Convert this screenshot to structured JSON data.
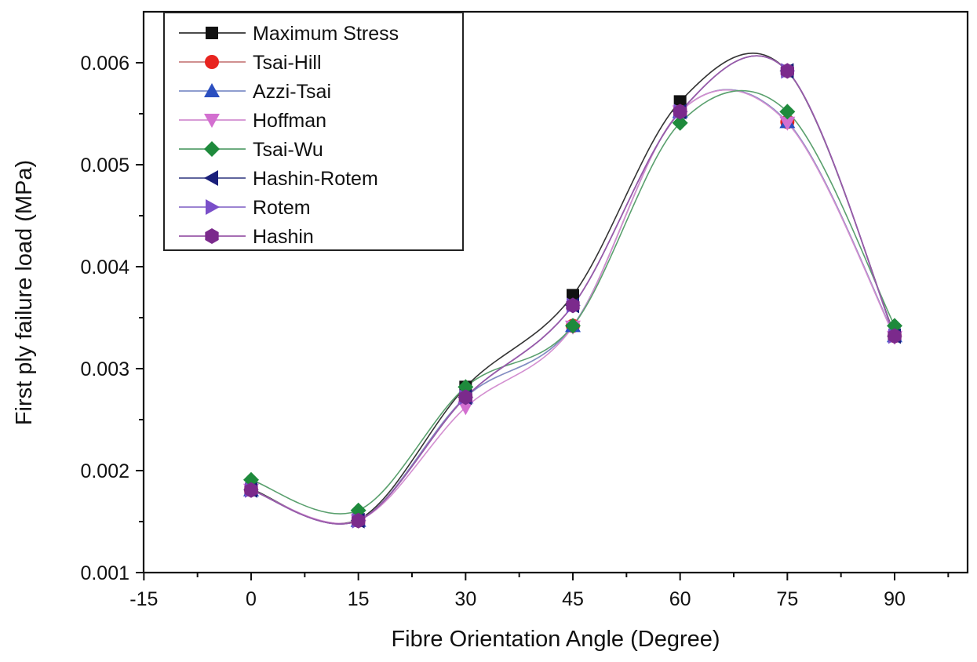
{
  "chart_data": {
    "type": "line",
    "title": "",
    "xlabel": "Fibre Orientation Angle (Degree)",
    "ylabel": "First ply failure load (MPa)",
    "xlim": [
      -15,
      97
    ],
    "ylim": [
      0.001,
      0.0065
    ],
    "xticks": [
      "-15",
      "0",
      "15",
      "30",
      "45",
      "60",
      "75",
      "90"
    ],
    "yticks": [
      "0.001",
      "0.002",
      "0.003",
      "0.004",
      "0.005",
      "0.006"
    ],
    "x": [
      0,
      15,
      30,
      45,
      60,
      75,
      90
    ],
    "legend_position": "top-left",
    "series": [
      {
        "name": "Maximum Stress",
        "marker": "square",
        "color": "#111111",
        "line_color": "#333333",
        "values": [
          0.00182,
          0.00152,
          0.00282,
          0.00372,
          0.00562,
          0.00592,
          0.00333
        ]
      },
      {
        "name": "Tsai-Hill",
        "marker": "circle",
        "color": "#e8241f",
        "line_color": "#c98080",
        "values": [
          0.00181,
          0.00151,
          0.00272,
          0.00342,
          0.00552,
          0.00542,
          0.00332
        ]
      },
      {
        "name": "Azzi-Tsai",
        "marker": "triangle-up",
        "color": "#2b4fc0",
        "line_color": "#7f8fc8",
        "values": [
          0.00181,
          0.00151,
          0.00272,
          0.00342,
          0.00552,
          0.00542,
          0.00332
        ]
      },
      {
        "name": "Hoffman",
        "marker": "triangle-down",
        "color": "#d36fd0",
        "line_color": "#d38ed0",
        "values": [
          0.00181,
          0.00151,
          0.00262,
          0.00341,
          0.00552,
          0.00541,
          0.00331
        ]
      },
      {
        "name": "Tsai-Wu",
        "marker": "diamond",
        "color": "#1e8a3c",
        "line_color": "#5aa06e",
        "values": [
          0.00191,
          0.00161,
          0.00282,
          0.00342,
          0.00541,
          0.00552,
          0.00342
        ]
      },
      {
        "name": "Hashin-Rotem",
        "marker": "triangle-left",
        "color": "#1a1f7a",
        "line_color": "#4a4f8f",
        "values": [
          0.00181,
          0.00151,
          0.00272,
          0.00362,
          0.00552,
          0.00592,
          0.00332
        ]
      },
      {
        "name": "Rotem",
        "marker": "triangle-right",
        "color": "#7a4fc9",
        "line_color": "#8e72cc",
        "values": [
          0.00181,
          0.00151,
          0.00272,
          0.00362,
          0.00552,
          0.00592,
          0.00332
        ]
      },
      {
        "name": "Hashin",
        "marker": "hexagon",
        "color": "#7b2a8c",
        "line_color": "#9a5aa8",
        "values": [
          0.00181,
          0.00151,
          0.00272,
          0.00362,
          0.00552,
          0.00592,
          0.00332
        ]
      }
    ]
  }
}
